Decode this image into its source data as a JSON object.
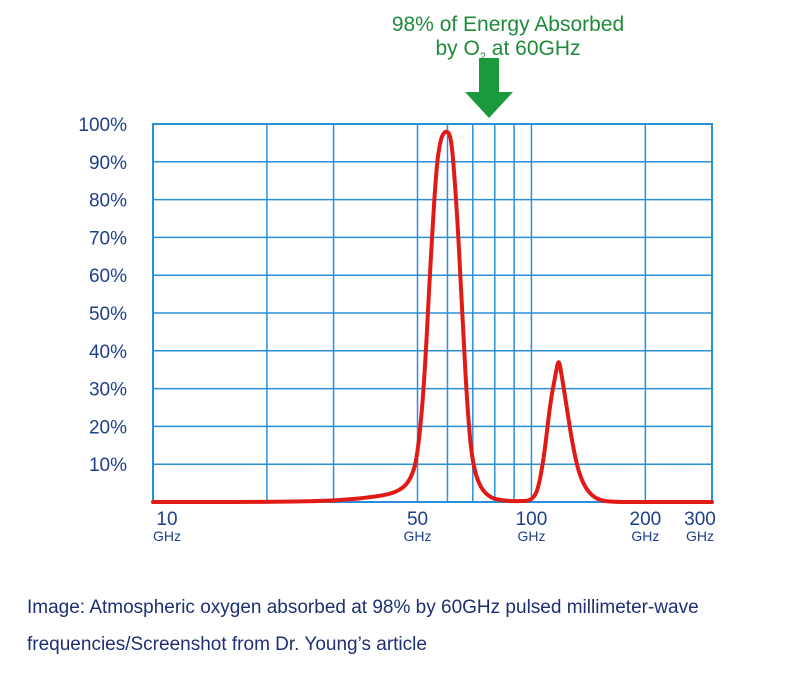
{
  "chart_data": {
    "type": "line",
    "annotation": {
      "line1": "98% of Energy Absorbed",
      "line2_prefix": "by O",
      "line2_subscript": "2",
      "line2_suffix": " at 60GHz"
    },
    "x_scale": "log",
    "xlim": [
      10,
      300
    ],
    "ylim": [
      0,
      100
    ],
    "y_ticks": [
      {
        "value": 100,
        "label": "100%"
      },
      {
        "value": 90,
        "label": "90%"
      },
      {
        "value": 80,
        "label": "80%"
      },
      {
        "value": 70,
        "label": "70%"
      },
      {
        "value": 60,
        "label": "60%"
      },
      {
        "value": 50,
        "label": "50%"
      },
      {
        "value": 40,
        "label": "40%"
      },
      {
        "value": 30,
        "label": "30%"
      },
      {
        "value": 20,
        "label": "20%"
      },
      {
        "value": 10,
        "label": "10%"
      }
    ],
    "x_ticks": [
      {
        "value": 10,
        "label": "10",
        "unit": "GHz"
      },
      {
        "value": 50,
        "label": "50",
        "unit": "GHz"
      },
      {
        "value": 100,
        "label": "100",
        "unit": "GHz"
      },
      {
        "value": 200,
        "label": "200",
        "unit": "GHz"
      },
      {
        "value": 300,
        "label": "300",
        "unit": "GHz"
      }
    ],
    "series": [
      {
        "points": [
          [
            10,
            0
          ],
          [
            20,
            0
          ],
          [
            30,
            0.3
          ],
          [
            40,
            1.5
          ],
          [
            45,
            3
          ],
          [
            48,
            6
          ],
          [
            50,
            12
          ],
          [
            52,
            30
          ],
          [
            54,
            62
          ],
          [
            56,
            88
          ],
          [
            57.5,
            96
          ],
          [
            59,
            98
          ],
          [
            60,
            98
          ],
          [
            61,
            97
          ],
          [
            62,
            92
          ],
          [
            64,
            72
          ],
          [
            66,
            45
          ],
          [
            68,
            22
          ],
          [
            70,
            10
          ],
          [
            73,
            4
          ],
          [
            78,
            1
          ],
          [
            85,
            0.3
          ],
          [
            95,
            0.2
          ],
          [
            100,
            0.5
          ],
          [
            104,
            3
          ],
          [
            108,
            12
          ],
          [
            112,
            26
          ],
          [
            116,
            34
          ],
          [
            118,
            38
          ],
          [
            120,
            34
          ],
          [
            124,
            25
          ],
          [
            128,
            16
          ],
          [
            133,
            8
          ],
          [
            140,
            3
          ],
          [
            150,
            0.5
          ],
          [
            165,
            0
          ],
          [
            200,
            0
          ],
          [
            300,
            0
          ]
        ]
      }
    ],
    "grid": true,
    "colors": {
      "line": "#e11a16",
      "grid": "#2a8fd9",
      "axis_labels": "#1e3f8a",
      "annotation_text": "#1e8a3a",
      "arrow": "#1a9a3c"
    }
  },
  "caption": "Image: Atmospheric oxygen absorbed at 98% by 60GHz pulsed millimeter-wave frequencies/Screenshot from Dr. Young’s article"
}
